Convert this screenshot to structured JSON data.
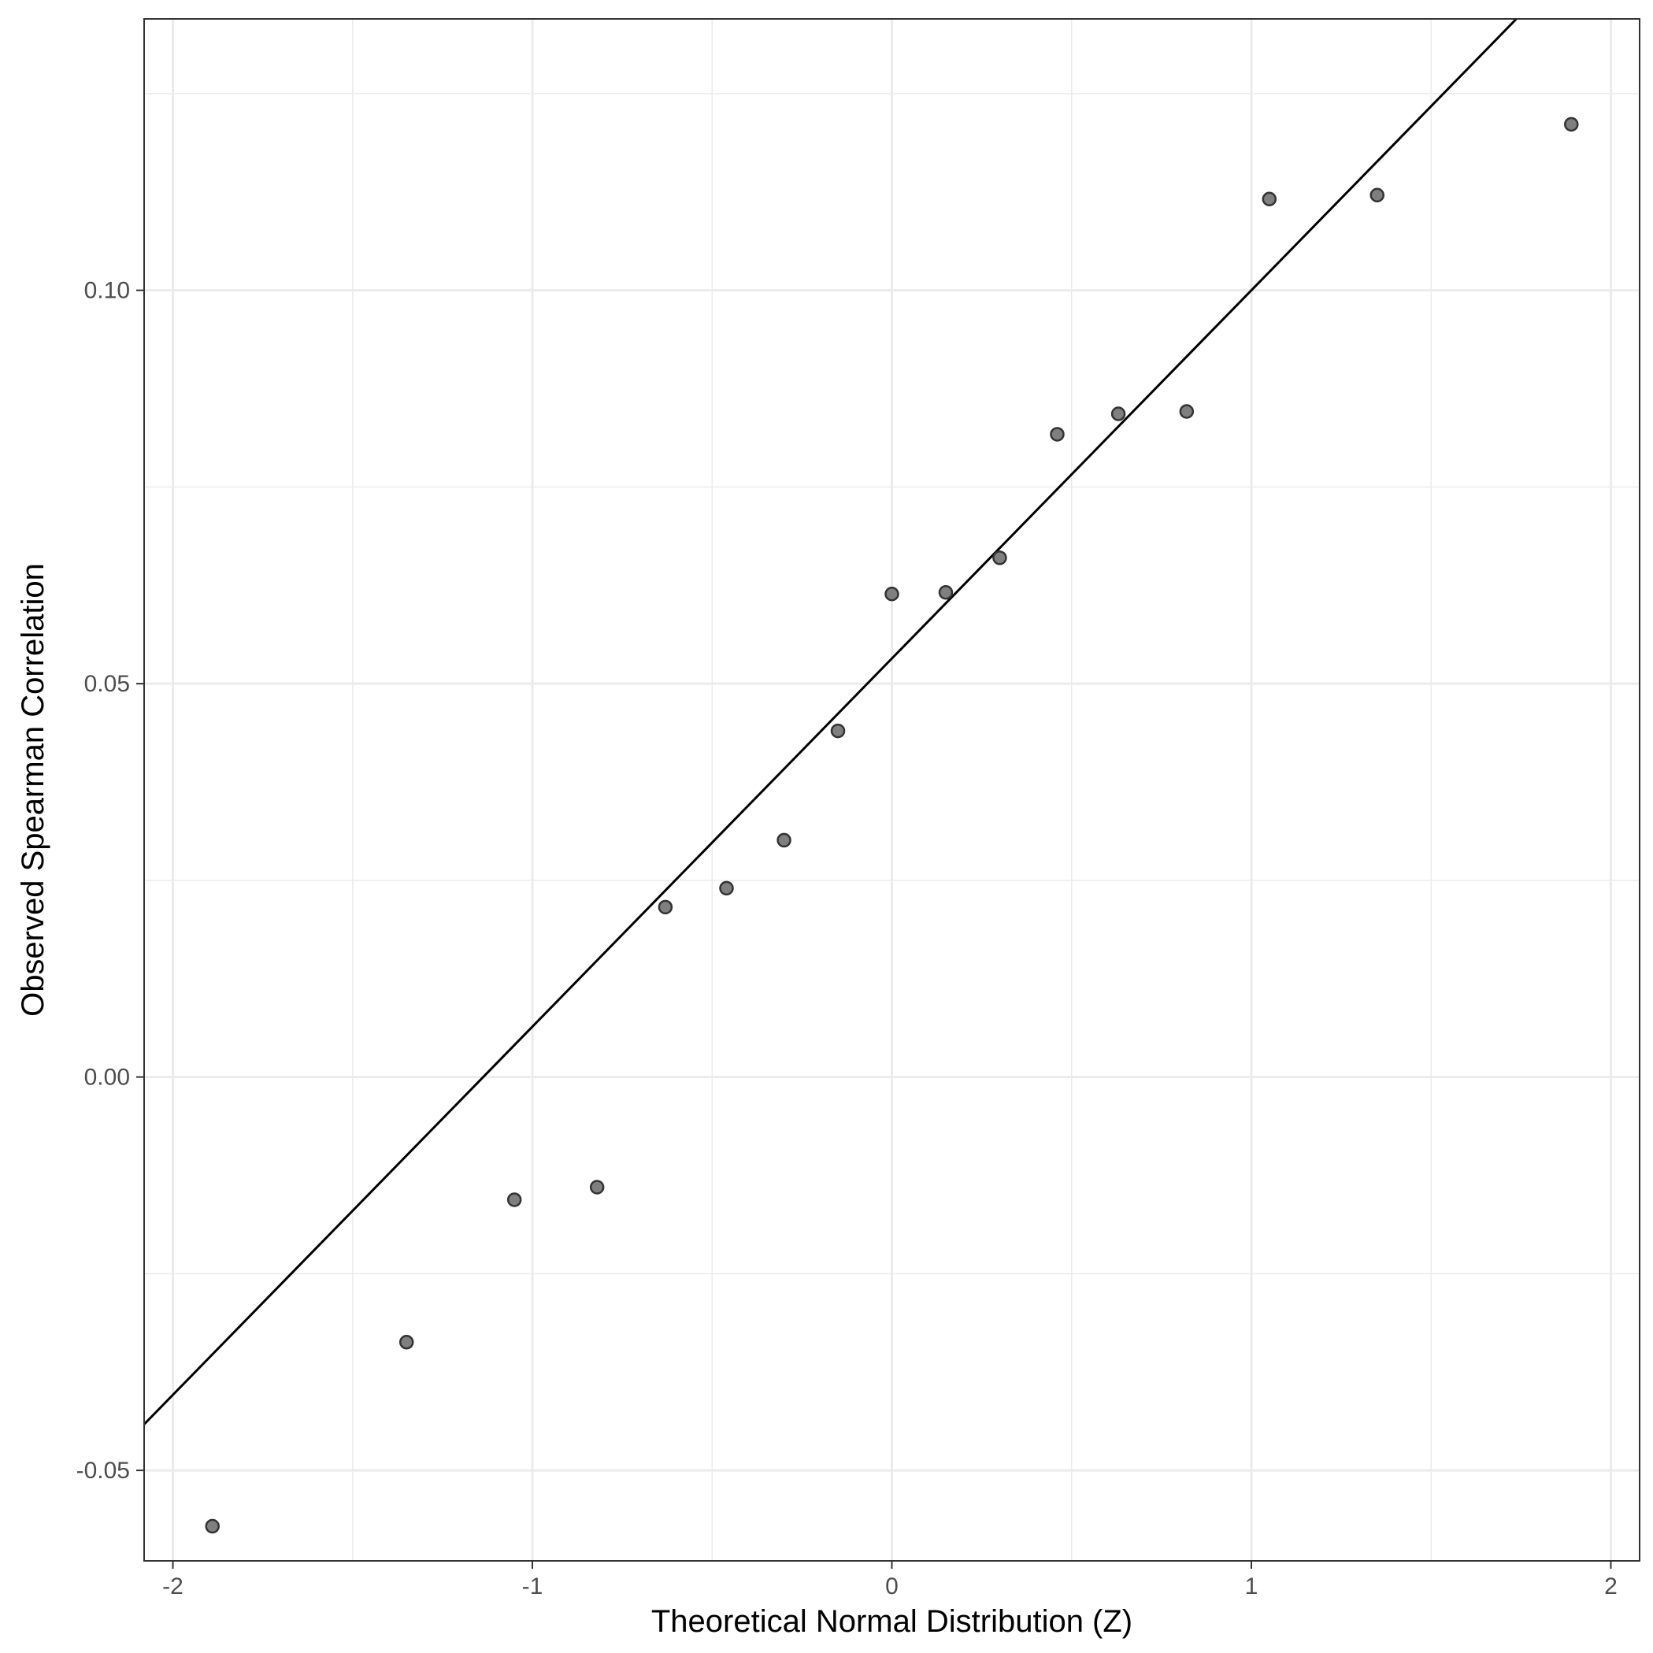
{
  "chart_data": {
    "type": "scatter",
    "title": "",
    "xlabel": "Theoretical Normal Distribution (Z)",
    "ylabel": "Observed Spearman Correlation",
    "xlim": [
      -2.08,
      2.08
    ],
    "ylim": [
      -0.0615,
      0.1345
    ],
    "x_ticks": [
      -2,
      -1,
      0,
      1,
      2
    ],
    "x_tick_labels": [
      "-2",
      "-1",
      "0",
      "1",
      "2"
    ],
    "y_ticks": [
      -0.05,
      0.0,
      0.05,
      0.1
    ],
    "y_tick_labels": [
      "-0.05",
      "0.00",
      "0.05",
      "0.10"
    ],
    "grid": true,
    "legend": "none",
    "point_color": "#7f7f7f",
    "line_color": "#000000",
    "reference_line": {
      "slope": 0.0468,
      "intercept": 0.0532
    },
    "points": [
      {
        "x": -1.89,
        "y": -0.0571
      },
      {
        "x": -1.35,
        "y": -0.0337
      },
      {
        "x": -1.05,
        "y": -0.0156
      },
      {
        "x": -0.82,
        "y": -0.014
      },
      {
        "x": -0.63,
        "y": 0.0216
      },
      {
        "x": -0.46,
        "y": 0.024
      },
      {
        "x": -0.3,
        "y": 0.0301
      },
      {
        "x": -0.15,
        "y": 0.044
      },
      {
        "x": 0.0,
        "y": 0.0614
      },
      {
        "x": 0.15,
        "y": 0.0616
      },
      {
        "x": 0.3,
        "y": 0.066
      },
      {
        "x": 0.46,
        "y": 0.0817
      },
      {
        "x": 0.63,
        "y": 0.0843
      },
      {
        "x": 0.82,
        "y": 0.0846
      },
      {
        "x": 1.05,
        "y": 0.1116
      },
      {
        "x": 1.35,
        "y": 0.1121
      },
      {
        "x": 1.89,
        "y": 0.1211
      }
    ]
  }
}
